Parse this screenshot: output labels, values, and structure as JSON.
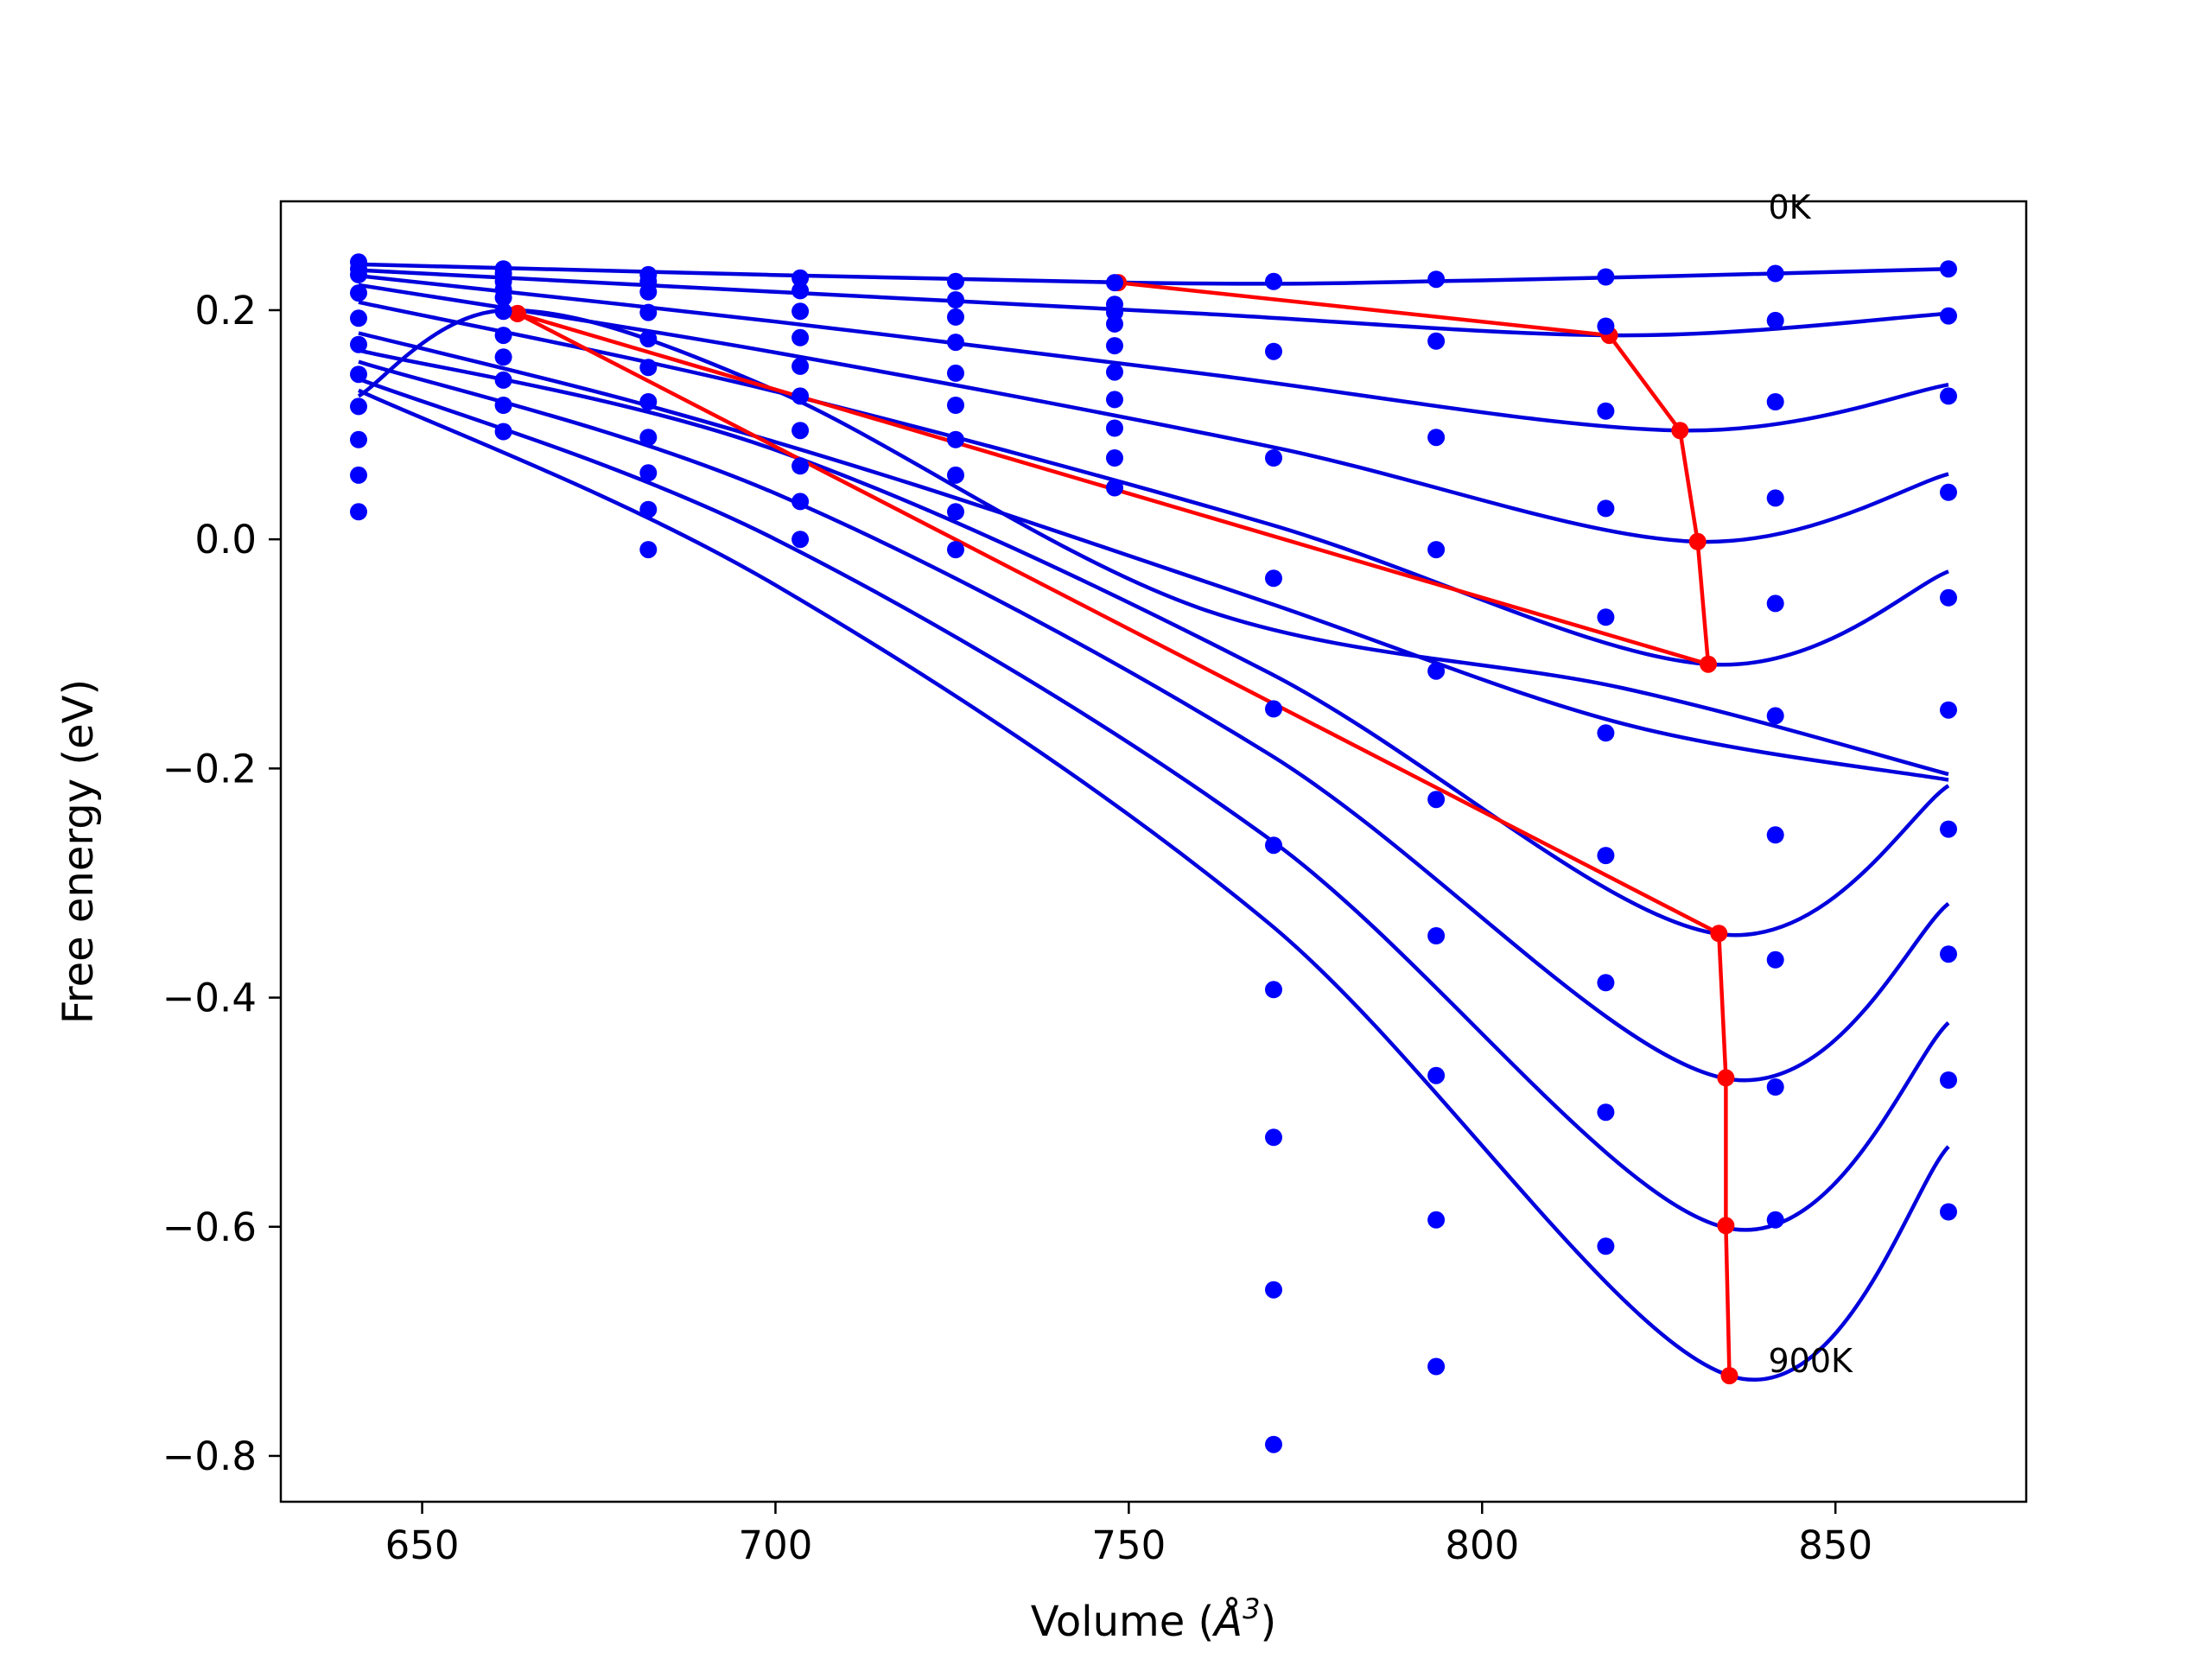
{
  "chart_data": {
    "type": "line",
    "title": "",
    "xlabel": "Volume (",
    "xlabel_symbol": "Å",
    "xlabel_exp": "3",
    "xlabel_close": ")",
    "ylabel": "Free energy (eV)",
    "xlim": [
      630,
      877
    ],
    "ylim": [
      -0.84,
      0.295
    ],
    "xticks": [
      650,
      700,
      750,
      800,
      850
    ],
    "xtick_labels": [
      "650",
      "700",
      "750",
      "800",
      "850"
    ],
    "yticks": [
      -0.8,
      -0.6,
      -0.4,
      -0.2,
      0.0,
      0.2
    ],
    "ytick_labels": [
      "−0.8",
      "−0.6",
      "−0.4",
      "−0.2",
      "0.0",
      "0.2"
    ],
    "grid": false,
    "colors": {
      "curve": "#0000dd",
      "points": "#0000ff",
      "path": "#ff0000"
    },
    "annotations": [
      {
        "text": "0K",
        "x": 840.5,
        "y": 0.28
      },
      {
        "text": "900K",
        "x": 840.5,
        "y": -0.727
      }
    ],
    "volumes": [
      641,
      661.5,
      682,
      703.5,
      725.5,
      748,
      770.5,
      793.5,
      817.5,
      841.5,
      866
    ],
    "scatter_values": [
      [
        0.242,
        0.236,
        0.231,
        0.228,
        0.225,
        0.224,
        0.225,
        0.227,
        0.229,
        0.232,
        0.236
      ],
      [
        0.236,
        0.232,
        0.225,
        0.217,
        0.209,
        0.205,
        null,
        null,
        0.186,
        0.191,
        0.195
      ],
      [
        0.231,
        0.225,
        0.216,
        0.199,
        0.194,
        0.198,
        0.164,
        0.173,
        0.112,
        0.12,
        0.125
      ],
      [
        0.215,
        0.218,
        0.198,
        0.176,
        0.172,
        0.188,
        0.071,
        0.089,
        0.027,
        0.036,
        0.041
      ],
      [
        0.193,
        0.211,
        0.175,
        0.151,
        0.145,
        0.169,
        -0.034,
        -0.009,
        -0.068,
        -0.056,
        -0.051
      ],
      [
        0.17,
        0.199,
        0.15,
        0.125,
        0.117,
        0.146,
        -0.148,
        -0.115,
        -0.169,
        -0.154,
        -0.149
      ],
      [
        0.144,
        0.178,
        0.12,
        0.095,
        0.087,
        0.122,
        -0.267,
        -0.227,
        -0.276,
        -0.258,
        -0.253
      ],
      [
        0.116,
        0.159,
        0.089,
        0.064,
        0.056,
        0.097,
        -0.393,
        -0.346,
        -0.387,
        -0.367,
        -0.362
      ],
      [
        0.087,
        0.139,
        0.058,
        0.033,
        0.024,
        0.071,
        -0.522,
        -0.468,
        -0.5,
        -0.478,
        -0.472
      ],
      [
        0.056,
        0.117,
        0.026,
        0.0,
        -0.009,
        0.045,
        -0.655,
        -0.594,
        -0.617,
        -0.594,
        -0.587
      ],
      [
        0.024,
        0.094,
        -0.009,
        null,
        null,
        null,
        -0.79,
        -0.722,
        null,
        null,
        null
      ]
    ],
    "series": [
      {
        "x": [
          641,
          750,
          800,
          866
        ],
        "y": [
          0.24,
          0.224,
          0.226,
          0.236
        ]
      },
      {
        "x": [
          641,
          700,
          760,
          820,
          866
        ],
        "y": [
          0.235,
          0.216,
          0.197,
          0.178,
          0.197
        ]
      },
      {
        "x": [
          641,
          700,
          760,
          828,
          866
        ],
        "y": [
          0.23,
          0.19,
          0.145,
          0.095,
          0.135
        ]
      },
      {
        "x": [
          641,
          700,
          770,
          830,
          866
        ],
        "y": [
          0.222,
          0.163,
          0.081,
          -0.002,
          0.057
        ]
      },
      {
        "x": [
          641,
          700,
          770,
          832,
          866
        ],
        "y": [
          0.207,
          0.129,
          0.013,
          -0.109,
          -0.028
        ]
      },
      {
        "x": [
          641,
          680,
          720,
          770,
          820,
          866
        ],
        "y": [
          0.18,
          0.12,
          0.047,
          -0.056,
          -0.161,
          -0.21
        ]
      },
      {
        "x": [
          641,
          700,
          770,
          833,
          866
        ],
        "y": [
          0.165,
          0.078,
          -0.117,
          -0.344,
          -0.215
        ]
      },
      {
        "x": [
          641,
          700,
          770,
          834,
          866
        ],
        "y": [
          0.155,
          0.04,
          -0.188,
          -0.47,
          -0.318
        ]
      },
      {
        "x": [
          641,
          700,
          770,
          834,
          866
        ],
        "y": [
          0.14,
          0.0,
          -0.262,
          -0.6,
          -0.422
        ]
      },
      {
        "x": [
          641,
          700,
          770,
          835,
          866
        ],
        "y": [
          0.13,
          -0.04,
          -0.336,
          -0.73,
          -0.53
        ]
      },
      {
        "x": [
          641,
          662,
          700,
          760,
          820,
          866
        ],
        "y": [
          0.125,
          0.2,
          0.13,
          -0.06,
          -0.13,
          -0.205
        ]
      }
    ],
    "equilibrium_path": {
      "x": [
        748.5,
        818,
        828,
        830.5,
        832,
        663.5,
        833.5,
        834.5,
        834.5,
        835,
        663.5
      ],
      "y": [
        0.224,
        0.178,
        0.095,
        -0.002,
        -0.109,
        0.197,
        -0.344,
        -0.47,
        -0.599,
        -0.73,
        0.197
      ],
      "segments": [
        [
          0,
          1
        ],
        [
          1,
          2
        ],
        [
          2,
          3
        ],
        [
          3,
          4
        ],
        [
          4,
          5
        ],
        [
          5,
          6
        ],
        [
          6,
          7
        ],
        [
          7,
          8
        ],
        [
          8,
          9
        ]
      ]
    }
  }
}
